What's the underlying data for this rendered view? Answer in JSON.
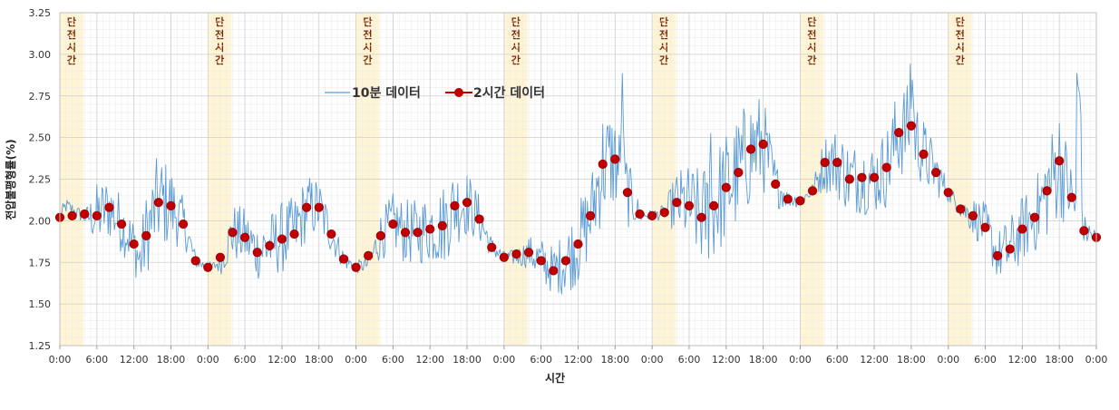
{
  "chart_data": {
    "type": "line",
    "xlabel": "시간",
    "ylabel": "전압불평형률(%)",
    "ylim": [
      1.25,
      3.25
    ],
    "yticks": [
      "1.25",
      "1.50",
      "1.75",
      "2.00",
      "2.25",
      "2.50",
      "2.75",
      "3.00",
      "3.25"
    ],
    "x_range_hours": [
      0,
      168
    ],
    "xticks": [
      "0:00",
      "6:00",
      "12:00",
      "18:00",
      "0:00",
      "6:00",
      "12:00",
      "18:00",
      "0:00",
      "6:00",
      "12:00",
      "18:00",
      "0:00",
      "6:00",
      "12:00",
      "18:00",
      "0:00",
      "6:00",
      "12:00",
      "18:00",
      "0:00",
      "6:00",
      "12:00",
      "18:00",
      "0:00",
      "6:00",
      "12:00",
      "18:00",
      "0:00"
    ],
    "grid": true,
    "legend_position": "top-center",
    "outage_label": "단전시간",
    "outage_windows_hours": [
      [
        0,
        3.8
      ],
      [
        24,
        27.8
      ],
      [
        48,
        51.8
      ],
      [
        72,
        75.8
      ],
      [
        96,
        99.8
      ],
      [
        120,
        123.8
      ],
      [
        144,
        147.8
      ]
    ],
    "series": [
      {
        "name": "10분 데이터",
        "style": "line",
        "color": "#5b9bd5",
        "anchor_hours": [
          0,
          1,
          4,
          6,
          8,
          10,
          12,
          13,
          14,
          16,
          18,
          20,
          22,
          24,
          25,
          26,
          28,
          30,
          32,
          34,
          36,
          38,
          40,
          42,
          44,
          46,
          48,
          50,
          52,
          54,
          56,
          58,
          60,
          62,
          64,
          66,
          68,
          70,
          72,
          74,
          76,
          78,
          80,
          82,
          84,
          86,
          88,
          90,
          92,
          94,
          96,
          98,
          100,
          102,
          104,
          106,
          108,
          110,
          112,
          114,
          116,
          118,
          120,
          122,
          124,
          126,
          128,
          130,
          132,
          134,
          136,
          138,
          140,
          142,
          144,
          146,
          148,
          150,
          152,
          154,
          156,
          158,
          160,
          162,
          164,
          166,
          168
        ],
        "anchor_values": [
          2.02,
          2.09,
          2.02,
          2.03,
          2.08,
          1.98,
          1.86,
          1.75,
          1.92,
          2.12,
          2.09,
          1.99,
          1.76,
          1.72,
          1.73,
          1.75,
          1.93,
          1.9,
          1.82,
          1.85,
          1.9,
          1.93,
          2.08,
          2.08,
          1.92,
          1.77,
          1.72,
          1.74,
          1.91,
          1.99,
          1.93,
          1.93,
          1.96,
          1.97,
          2.09,
          2.11,
          2.01,
          1.84,
          1.78,
          1.78,
          1.81,
          1.76,
          1.7,
          1.76,
          1.86,
          2.02,
          2.34,
          2.37,
          2.17,
          2.04,
          2.03,
          2.05,
          2.11,
          2.09,
          2.02,
          2.09,
          2.2,
          2.29,
          2.43,
          2.46,
          2.22,
          2.13,
          2.12,
          2.18,
          2.35,
          2.35,
          2.25,
          2.26,
          2.25,
          2.32,
          2.53,
          2.57,
          2.4,
          2.29,
          2.17,
          2.07,
          2.03,
          1.96,
          1.79,
          1.83,
          1.95,
          2.02,
          2.18,
          2.36,
          2.14,
          1.94,
          1.9
        ],
        "amplitude_anchors": [
          0.05,
          0.05,
          0.04,
          0.2,
          0.2,
          0.18,
          0.16,
          0.2,
          0.25,
          0.3,
          0.25,
          0.15,
          0.05,
          0.03,
          0.03,
          0.08,
          0.18,
          0.18,
          0.18,
          0.2,
          0.22,
          0.22,
          0.2,
          0.18,
          0.12,
          0.06,
          0.04,
          0.05,
          0.15,
          0.18,
          0.2,
          0.2,
          0.22,
          0.25,
          0.25,
          0.2,
          0.15,
          0.06,
          0.04,
          0.05,
          0.1,
          0.14,
          0.15,
          0.2,
          0.25,
          0.25,
          0.35,
          0.3,
          0.22,
          0.06,
          0.03,
          0.05,
          0.2,
          0.25,
          0.3,
          0.35,
          0.35,
          0.35,
          0.35,
          0.3,
          0.15,
          0.05,
          0.04,
          0.05,
          0.18,
          0.22,
          0.22,
          0.22,
          0.22,
          0.25,
          0.3,
          0.25,
          0.22,
          0.15,
          0.06,
          0.05,
          0.12,
          0.15,
          0.15,
          0.2,
          0.2,
          0.22,
          0.3,
          0.35,
          0.2,
          0.1,
          0.05
        ],
        "sample_interval_minutes": 10
      },
      {
        "name": "2시간 데이터",
        "style": "marker-line",
        "color": "#c00000",
        "x_hours": [
          0,
          2,
          4,
          6,
          8,
          10,
          12,
          14,
          16,
          18,
          20,
          22,
          24,
          26,
          28,
          30,
          32,
          34,
          36,
          38,
          40,
          42,
          44,
          46,
          48,
          50,
          52,
          54,
          56,
          58,
          60,
          62,
          64,
          66,
          68,
          70,
          72,
          74,
          76,
          78,
          80,
          82,
          84,
          86,
          88,
          90,
          92,
          94,
          96,
          98,
          100,
          102,
          104,
          106,
          108,
          110,
          112,
          114,
          116,
          118,
          120,
          122,
          124,
          126,
          128,
          130,
          132,
          134,
          136,
          138,
          140,
          142,
          144,
          146,
          148,
          150,
          152,
          154,
          156,
          158,
          160,
          162,
          164,
          166,
          168
        ],
        "values": [
          2.02,
          2.03,
          2.04,
          2.03,
          2.08,
          1.98,
          1.86,
          1.91,
          2.11,
          2.09,
          1.98,
          1.76,
          1.72,
          1.78,
          1.93,
          1.9,
          1.81,
          1.85,
          1.89,
          1.92,
          2.08,
          2.08,
          1.92,
          1.77,
          1.72,
          1.79,
          1.91,
          1.98,
          1.93,
          1.93,
          1.95,
          1.97,
          2.09,
          2.11,
          2.01,
          1.84,
          1.78,
          1.8,
          1.81,
          1.76,
          1.7,
          1.76,
          1.86,
          2.03,
          2.34,
          2.37,
          2.17,
          2.04,
          2.03,
          2.05,
          2.11,
          2.09,
          2.02,
          2.09,
          2.2,
          2.29,
          2.43,
          2.46,
          2.22,
          2.13,
          2.12,
          2.18,
          2.35,
          2.35,
          2.25,
          2.26,
          2.26,
          2.32,
          2.53,
          2.57,
          2.4,
          2.29,
          2.17,
          2.07,
          2.03,
          1.96,
          1.79,
          1.83,
          1.95,
          2.02,
          2.18,
          2.36,
          2.14,
          1.94,
          1.9
        ]
      }
    ]
  }
}
